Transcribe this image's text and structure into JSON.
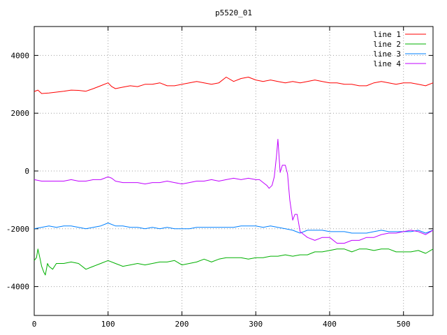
{
  "chart_data": {
    "type": "line",
    "title": "p5520_01",
    "xlabel": "",
    "ylabel": "",
    "xlim": [
      0,
      540
    ],
    "ylim": [
      -5000,
      5000
    ],
    "x_ticks": [
      0,
      100,
      200,
      300,
      400,
      500
    ],
    "y_ticks": [
      -4000,
      -2000,
      0,
      2000,
      4000
    ],
    "grid": true,
    "legend_position": "top-right",
    "series": [
      {
        "name": "line 1",
        "color": "#ff0000",
        "x": [
          0,
          5,
          10,
          20,
          30,
          40,
          50,
          60,
          70,
          80,
          90,
          100,
          105,
          110,
          120,
          130,
          140,
          150,
          160,
          170,
          180,
          190,
          200,
          210,
          220,
          230,
          240,
          250,
          260,
          270,
          280,
          290,
          300,
          310,
          320,
          330,
          340,
          350,
          360,
          370,
          380,
          390,
          400,
          410,
          420,
          430,
          440,
          450,
          460,
          470,
          480,
          490,
          500,
          510,
          520,
          530,
          540
        ],
        "y": [
          2750,
          2800,
          2680,
          2700,
          2730,
          2760,
          2800,
          2790,
          2760,
          2850,
          2950,
          3050,
          2920,
          2850,
          2900,
          2950,
          2920,
          3000,
          3000,
          3050,
          2950,
          2950,
          3000,
          3050,
          3100,
          3050,
          3000,
          3050,
          3250,
          3100,
          3200,
          3250,
          3150,
          3100,
          3150,
          3100,
          3050,
          3100,
          3050,
          3100,
          3150,
          3100,
          3050,
          3050,
          3000,
          3000,
          2950,
          2950,
          3050,
          3100,
          3050,
          3000,
          3050,
          3050,
          3000,
          2950,
          3050
        ]
      },
      {
        "name": "line 2",
        "color": "#00b000",
        "x": [
          0,
          3,
          5,
          8,
          10,
          13,
          15,
          18,
          20,
          25,
          30,
          40,
          50,
          60,
          70,
          80,
          90,
          100,
          110,
          120,
          130,
          140,
          150,
          160,
          170,
          180,
          190,
          200,
          210,
          220,
          230,
          240,
          250,
          260,
          270,
          280,
          290,
          300,
          310,
          320,
          330,
          340,
          350,
          360,
          370,
          380,
          390,
          400,
          410,
          420,
          430,
          440,
          450,
          460,
          470,
          480,
          490,
          500,
          510,
          520,
          530,
          540
        ],
        "y": [
          -3100,
          -3000,
          -2700,
          -3050,
          -3300,
          -3500,
          -3600,
          -3200,
          -3300,
          -3400,
          -3200,
          -3200,
          -3150,
          -3200,
          -3400,
          -3300,
          -3200,
          -3100,
          -3200,
          -3300,
          -3250,
          -3200,
          -3250,
          -3200,
          -3150,
          -3150,
          -3100,
          -3250,
          -3200,
          -3150,
          -3050,
          -3150,
          -3050,
          -3000,
          -3000,
          -3000,
          -3050,
          -3000,
          -3000,
          -2950,
          -2950,
          -2900,
          -2950,
          -2900,
          -2900,
          -2800,
          -2800,
          -2750,
          -2700,
          -2700,
          -2800,
          -2700,
          -2700,
          -2750,
          -2700,
          -2700,
          -2800,
          -2800,
          -2800,
          -2750,
          -2850,
          -2700
        ]
      },
      {
        "name": "line 3",
        "color": "#0080ff",
        "x": [
          0,
          10,
          20,
          30,
          40,
          50,
          60,
          70,
          80,
          90,
          100,
          110,
          120,
          130,
          140,
          150,
          160,
          170,
          180,
          190,
          200,
          210,
          220,
          230,
          240,
          250,
          260,
          270,
          280,
          290,
          300,
          310,
          320,
          330,
          340,
          350,
          360,
          370,
          380,
          390,
          400,
          410,
          420,
          430,
          440,
          450,
          460,
          470,
          480,
          490,
          500,
          510,
          520,
          530,
          540
        ],
        "y": [
          -2000,
          -1950,
          -1900,
          -1950,
          -1900,
          -1900,
          -1950,
          -2000,
          -1950,
          -1900,
          -1800,
          -1900,
          -1900,
          -1950,
          -1950,
          -2000,
          -1950,
          -2000,
          -1950,
          -2000,
          -2000,
          -2000,
          -1950,
          -1950,
          -1950,
          -1950,
          -1950,
          -1950,
          -1900,
          -1900,
          -1900,
          -1950,
          -1900,
          -1950,
          -2000,
          -2050,
          -2150,
          -2050,
          -2050,
          -2050,
          -2100,
          -2100,
          -2100,
          -2150,
          -2150,
          -2150,
          -2100,
          -2050,
          -2100,
          -2100,
          -2100,
          -2100,
          -2050,
          -2150,
          -2050
        ]
      },
      {
        "name": "line 4",
        "color": "#c000ff",
        "x": [
          0,
          10,
          20,
          30,
          40,
          50,
          60,
          70,
          80,
          90,
          95,
          100,
          105,
          110,
          120,
          130,
          140,
          150,
          160,
          170,
          180,
          190,
          200,
          210,
          220,
          230,
          240,
          250,
          260,
          270,
          280,
          290,
          300,
          305,
          310,
          315,
          318,
          322,
          325,
          328,
          330,
          333,
          336,
          340,
          343,
          346,
          350,
          353,
          356,
          360,
          365,
          370,
          380,
          390,
          400,
          410,
          420,
          430,
          440,
          450,
          460,
          470,
          480,
          490,
          500,
          510,
          520,
          530,
          540
        ],
        "y": [
          -300,
          -350,
          -350,
          -350,
          -350,
          -300,
          -350,
          -350,
          -300,
          -300,
          -250,
          -200,
          -250,
          -350,
          -400,
          -400,
          -400,
          -450,
          -400,
          -400,
          -350,
          -400,
          -450,
          -400,
          -350,
          -350,
          -300,
          -350,
          -300,
          -250,
          -300,
          -250,
          -300,
          -300,
          -400,
          -500,
          -600,
          -500,
          -200,
          500,
          1100,
          -50,
          200,
          200,
          -100,
          -1000,
          -1700,
          -1500,
          -1500,
          -2100,
          -2200,
          -2300,
          -2400,
          -2300,
          -2300,
          -2500,
          -2500,
          -2400,
          -2400,
          -2300,
          -2300,
          -2200,
          -2150,
          -2150,
          -2100,
          -2050,
          -2100,
          -2200,
          -2050
        ]
      }
    ]
  }
}
